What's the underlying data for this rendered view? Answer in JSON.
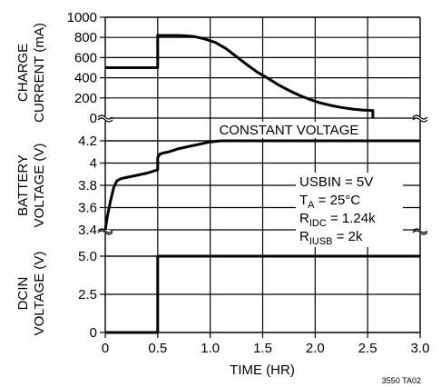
{
  "chart_data": [
    {
      "type": "line",
      "ylabel_lines": [
        "CHARGE",
        "CURRENT (mA)"
      ],
      "yticks": [
        0,
        200,
        400,
        600,
        800,
        1000
      ],
      "ylim": [
        0,
        1000
      ],
      "xlim": [
        0,
        3.0
      ],
      "grid": true,
      "series": [
        {
          "x": [
            0,
            0.5,
            0.5,
            0.55,
            0.65,
            0.75,
            0.85,
            0.95,
            1.05,
            1.15,
            1.25,
            1.35,
            1.45,
            1.55,
            1.65,
            1.75,
            1.85,
            1.95,
            2.05,
            2.15,
            2.25,
            2.35,
            2.45,
            2.55,
            2.55
          ],
          "y": [
            500,
            500,
            820,
            820,
            820,
            818,
            808,
            785,
            750,
            690,
            610,
            530,
            455,
            395,
            330,
            275,
            225,
            185,
            150,
            125,
            105,
            90,
            80,
            75,
            0
          ]
        }
      ],
      "annotations": [
        {
          "text": "CONSTANT VOLTAGE",
          "x": 1.75,
          "y": -35
        }
      ]
    },
    {
      "type": "line",
      "ylabel_lines": [
        "BATTERY",
        "VOLTAGE (V)"
      ],
      "yticks": [
        3.4,
        3.6,
        3.8,
        4.0,
        4.2
      ],
      "ylim": [
        3.4,
        4.2
      ],
      "xlim": [
        0,
        3.0
      ],
      "grid": true,
      "series": [
        {
          "x": [
            0,
            0.02,
            0.05,
            0.08,
            0.11,
            0.15,
            0.2,
            0.3,
            0.4,
            0.5,
            0.5,
            0.52,
            0.55,
            0.6,
            0.7,
            0.8,
            0.9,
            1.0,
            1.1,
            1.2,
            1.3,
            3.0
          ],
          "y": [
            3.4,
            3.52,
            3.66,
            3.78,
            3.84,
            3.86,
            3.87,
            3.89,
            3.91,
            3.94,
            4.05,
            4.08,
            4.09,
            4.1,
            4.13,
            4.15,
            4.17,
            4.19,
            4.2,
            4.2,
            4.2,
            4.2
          ]
        }
      ],
      "legend_text": [
        {
          "main": "USBIN = 5V",
          "sub": "",
          "rest": ""
        },
        {
          "main": "T",
          "sub": "A",
          "rest": " = 25°C"
        },
        {
          "main": "R",
          "sub": "IDC",
          "rest": " = 1.24k"
        },
        {
          "main": "R",
          "sub": "IUSB",
          "rest": " = 2k"
        }
      ]
    },
    {
      "type": "line",
      "ylabel_lines": [
        "DCIN",
        "VOLTAGE (V)"
      ],
      "yticks": [
        0,
        2.5,
        5.0
      ],
      "ytick_labels": [
        "0",
        "2.5",
        "5.0"
      ],
      "ylim": [
        0,
        5.0
      ],
      "xlim": [
        0,
        3.0
      ],
      "grid": true,
      "series": [
        {
          "x": [
            0,
            0.5,
            0.5,
            3.0
          ],
          "y": [
            0,
            0,
            5.0,
            5.0
          ]
        }
      ]
    }
  ],
  "x_axis": {
    "ticks": [
      "0",
      "0.5",
      "1.0",
      "1.5",
      "2.0",
      "2.5",
      "3.0"
    ],
    "label": "TIME (HR)"
  },
  "figure_code": "3550 TA02"
}
